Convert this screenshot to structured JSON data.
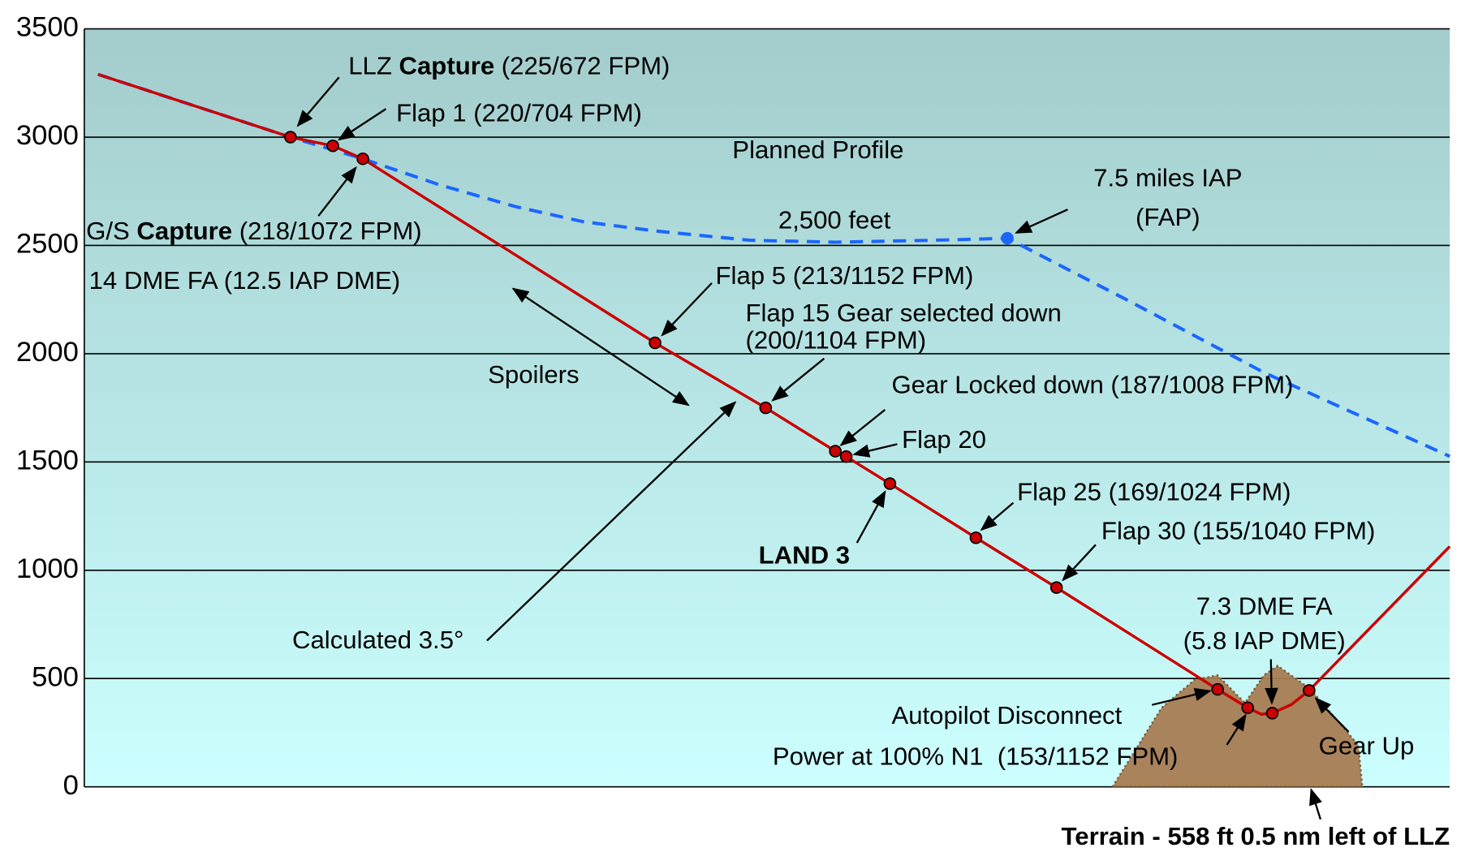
{
  "chart_data": {
    "type": "line",
    "ylim": [
      0,
      3500
    ],
    "yticks": [
      0,
      500,
      1000,
      1500,
      2000,
      2500,
      3000,
      3500
    ],
    "xlim": [
      0,
      100
    ],
    "grid": true,
    "series": [
      {
        "color": "#cc0000",
        "x": [
          1.0,
          15.1,
          18.2,
          20.4,
          41.8,
          49.9,
          55.0,
          55.8,
          59.0,
          65.3,
          71.2,
          83.0,
          85.2,
          86.2,
          87.0,
          88.4,
          89.7,
          100
        ],
        "values": [
          3290,
          3000,
          2960,
          2900,
          2050,
          1750,
          1550,
          1525,
          1400,
          1150,
          920,
          450,
          365,
          335,
          340,
          380,
          445,
          1110
        ]
      },
      {
        "color": "#1a66ff",
        "dashed": true,
        "x": [
          1.0,
          15.1,
          20.4,
          26.0,
          31.6,
          36.5,
          41.8,
          48.7,
          55.0,
          59.0,
          63.0,
          67.6,
          76.1,
          86.4,
          100
        ],
        "values": [
          3290,
          3000,
          2900,
          2780,
          2679,
          2610,
          2567,
          2524,
          2515,
          2520,
          2525,
          2533,
          2257,
          1913,
          1526
        ]
      }
    ],
    "terrain": {
      "color": "#a67c52",
      "x": [
        75.3,
        78.9,
        81.3,
        83.0,
        85.0,
        86.4,
        87.4,
        89.8,
        93.3,
        93.6
      ],
      "values": [
        0,
        365,
        494,
        515,
        387,
        516,
        559,
        451,
        193,
        0
      ]
    },
    "annotations": [
      {
        "text": [
          [
            "LLZ ",
            "Capture",
            " (225/672 FPM)"
          ]
        ]
      },
      {
        "text": [
          "Flap 1 (220/704 FPM)"
        ]
      },
      {
        "text": [
          "Planned Profile"
        ]
      },
      {
        "text": [
          [
            "G/S ",
            "Capture",
            " (218/1072 FPM)"
          ]
        ]
      },
      {
        "text": [
          "14 DME FA (12.5 IAP DME)"
        ]
      },
      {
        "text": [
          "2,500 feet"
        ]
      },
      {
        "text": [
          "7.5 miles IAP",
          "(FAP)"
        ]
      },
      {
        "text": [
          "Flap 5 (213/1152 FPM)"
        ]
      },
      {
        "text": [
          "Flap 15 Gear selected down",
          "(200/1104 FPM)"
        ]
      },
      {
        "text": [
          "Spoilers"
        ]
      },
      {
        "text": [
          "Gear Locked down (187/1008 FPM)"
        ]
      },
      {
        "text": [
          "Flap 20"
        ]
      },
      {
        "text": [
          "LAND 3"
        ]
      },
      {
        "text": [
          "Flap 25 (169/1024 FPM)"
        ]
      },
      {
        "text": [
          "Flap 30 (155/1040 FPM)"
        ]
      },
      {
        "text": [
          "Calculated 3.5°"
        ]
      },
      {
        "text": [
          "7.3 DME FA",
          "(5.8 IAP DME)"
        ]
      },
      {
        "text": [
          "Autopilot Disconnect"
        ]
      },
      {
        "text": [
          "Power at 100% N1  (153/1152 FPM)"
        ]
      },
      {
        "text": [
          "Gear Up"
        ]
      },
      {
        "text": [
          "Terrain - 558 ft 0.5 nm left of LLZ"
        ]
      }
    ]
  }
}
